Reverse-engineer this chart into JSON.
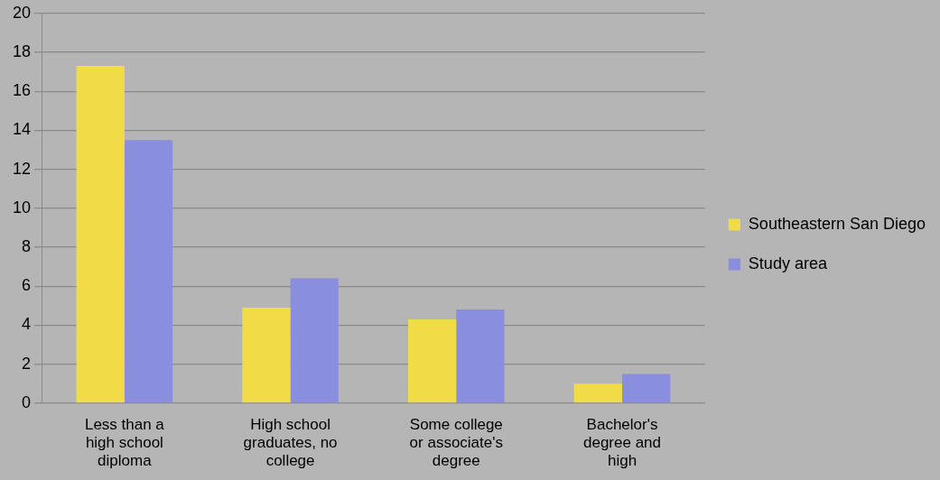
{
  "chart_data": {
    "type": "bar",
    "categories": [
      "Less than a\nhigh school\ndiploma",
      "High school\ngraduates, no\ncollege",
      "Some college\nor associate's\ndegree",
      "Bachelor's\ndegree and\nhigh"
    ],
    "series": [
      {
        "name": "Southeastern San Diego",
        "color": "#f0dc46",
        "values": [
          17.3,
          4.9,
          4.3,
          1.0
        ]
      },
      {
        "name": "Study area",
        "color": "#8a8ede",
        "values": [
          13.5,
          6.4,
          4.8,
          1.5
        ]
      }
    ],
    "ylim": [
      0,
      20
    ],
    "yticks": [
      0,
      2,
      4,
      6,
      8,
      10,
      12,
      14,
      16,
      18,
      20
    ],
    "grid": "y",
    "legend": "right"
  }
}
